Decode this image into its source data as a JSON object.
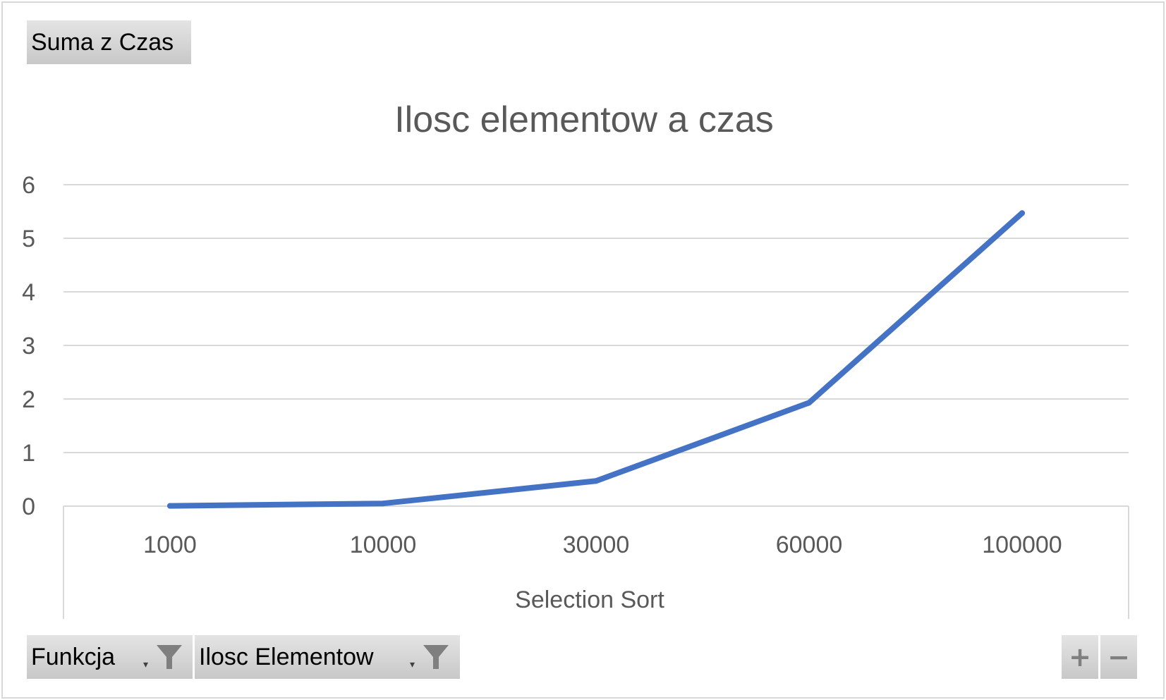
{
  "pivot": {
    "value_field": "Suma z Czas",
    "axis_fields": [
      "Funkcja",
      "Ilosc Elementow"
    ],
    "zoom_in": "+",
    "zoom_out": "−"
  },
  "colors": {
    "series": "#4472c4",
    "gridline": "#d9d9d9",
    "text": "#595959"
  },
  "chart_data": {
    "type": "line",
    "title": "Ilosc elementow a czas",
    "xlabel": "Selection Sort",
    "ylabel": "",
    "categories": [
      "1000",
      "10000",
      "30000",
      "60000",
      "100000"
    ],
    "series": [
      {
        "values": [
          0.005,
          0.05,
          0.47,
          1.93,
          5.47
        ]
      }
    ],
    "ylim": [
      0,
      6
    ],
    "yticks": [
      0,
      1,
      2,
      3,
      4,
      5,
      6
    ],
    "grid": true,
    "legend": "none"
  }
}
